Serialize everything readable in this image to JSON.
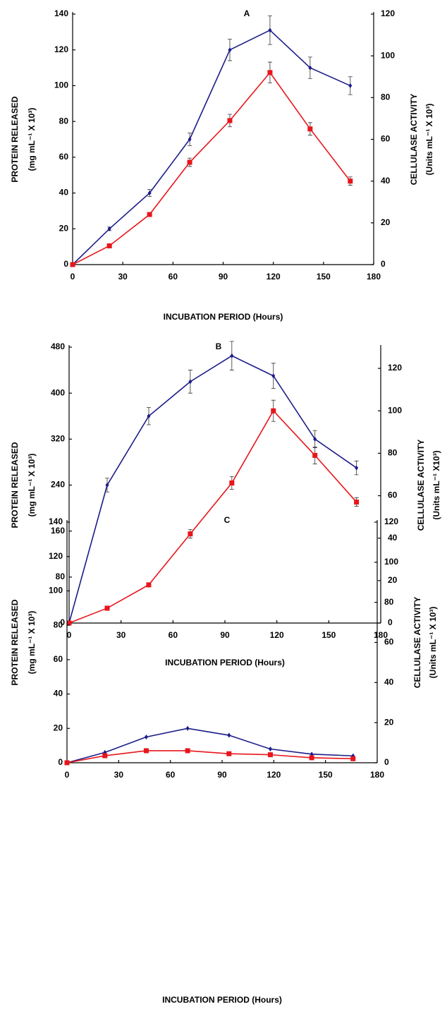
{
  "chart_data": [
    {
      "type": "line",
      "title": "A",
      "xlabel": "INCUBATION PERIOD (Hours)",
      "ylabel": [
        "PROTEIN RELEASED",
        "(mg mL⁻¹ X 10³)"
      ],
      "y2label": [
        "CELLULASE ACTIVITY",
        "(Units mL⁻¹ X 10³)"
      ],
      "x": [
        0,
        22,
        46,
        70,
        94,
        118,
        142,
        166
      ],
      "xlim": [
        0,
        180
      ],
      "xticks": [
        0,
        30,
        60,
        90,
        120,
        150,
        180
      ],
      "ylim": [
        0,
        140
      ],
      "yticks": [
        0,
        20,
        40,
        60,
        80,
        100,
        120,
        140
      ],
      "y2lim": [
        0,
        120
      ],
      "y2ticks": [
        0,
        20,
        40,
        60,
        80,
        100,
        120
      ],
      "series": [
        {
          "color": "#1c1c8a",
          "marker": "diamond",
          "values": [
            0,
            20,
            40,
            70,
            120,
            131,
            110,
            100
          ],
          "errors": [
            0,
            1,
            2,
            3.5,
            6,
            8,
            6,
            5
          ]
        },
        {
          "color": "#e8151b",
          "marker": "square",
          "axis": "y2",
          "values": [
            0,
            9,
            24,
            49,
            69,
            92,
            65,
            40
          ],
          "errors": [
            0,
            1,
            1,
            2,
            3,
            5,
            3,
            2
          ]
        }
      ]
    },
    {
      "type": "line",
      "title": "B",
      "xlabel": "INCUBATION PERIOD (Hours)",
      "ylabel": [
        "PROTEIN RELEASED",
        "(mg mL⁻¹ X 10³)"
      ],
      "y2label": [
        "CELLULASE ACTIVITY",
        "(Units mL⁻¹ X10³)"
      ],
      "x": [
        0,
        22,
        46,
        70,
        94,
        118,
        142,
        166
      ],
      "xlim": [
        0,
        180
      ],
      "xticks": [
        0,
        30,
        60,
        90,
        120,
        150,
        180
      ],
      "ylim": [
        0,
        480
      ],
      "yticks": [
        0,
        80,
        160,
        240,
        320,
        400,
        480
      ],
      "y2lim": [
        0,
        130
      ],
      "y2ticks": [
        0,
        20,
        40,
        60,
        80,
        100,
        120
      ],
      "series": [
        {
          "color": "#1c1c8a",
          "marker": "diamond",
          "values": [
            0,
            240,
            360,
            420,
            465,
            430,
            320,
            270
          ],
          "errors": [
            0,
            12,
            15,
            20,
            25,
            22,
            15,
            12
          ]
        },
        {
          "color": "#e8151b",
          "marker": "square",
          "axis": "y2",
          "values": [
            0,
            7,
            18,
            42,
            66,
            100,
            79,
            57
          ],
          "errors": [
            0,
            1,
            1,
            2,
            3,
            5,
            4,
            2
          ]
        }
      ]
    },
    {
      "type": "line",
      "title": "C",
      "xlabel": "INCUBATION PERIOD (Hours)",
      "ylabel": [
        "PROTEIN RELEASED",
        "(mg mL⁻¹ X 10³)"
      ],
      "y2label": [
        "CELLULASE ACTIVITY",
        "(Units mL⁻¹ X 10³)"
      ],
      "x": [
        0,
        22,
        46,
        70,
        94,
        118,
        142,
        166
      ],
      "xlim": [
        0,
        180
      ],
      "xticks": [
        0,
        30,
        60,
        90,
        120,
        150,
        180
      ],
      "ylim": [
        0,
        140
      ],
      "yticks": [
        0,
        20,
        40,
        60,
        80,
        100,
        120,
        140
      ],
      "y2lim": [
        0,
        120
      ],
      "y2ticks": [
        0,
        20,
        40,
        60,
        80,
        100,
        120
      ],
      "series": [
        {
          "color": "#1c1c8a",
          "marker": "diamond",
          "values": [
            0,
            6,
            15,
            20,
            16,
            8,
            5,
            4
          ]
        },
        {
          "color": "#e8151b",
          "marker": "square",
          "axis": "y2",
          "values": [
            0,
            3.5,
            6,
            6,
            4.5,
            4,
            2.5,
            2
          ]
        }
      ]
    }
  ]
}
